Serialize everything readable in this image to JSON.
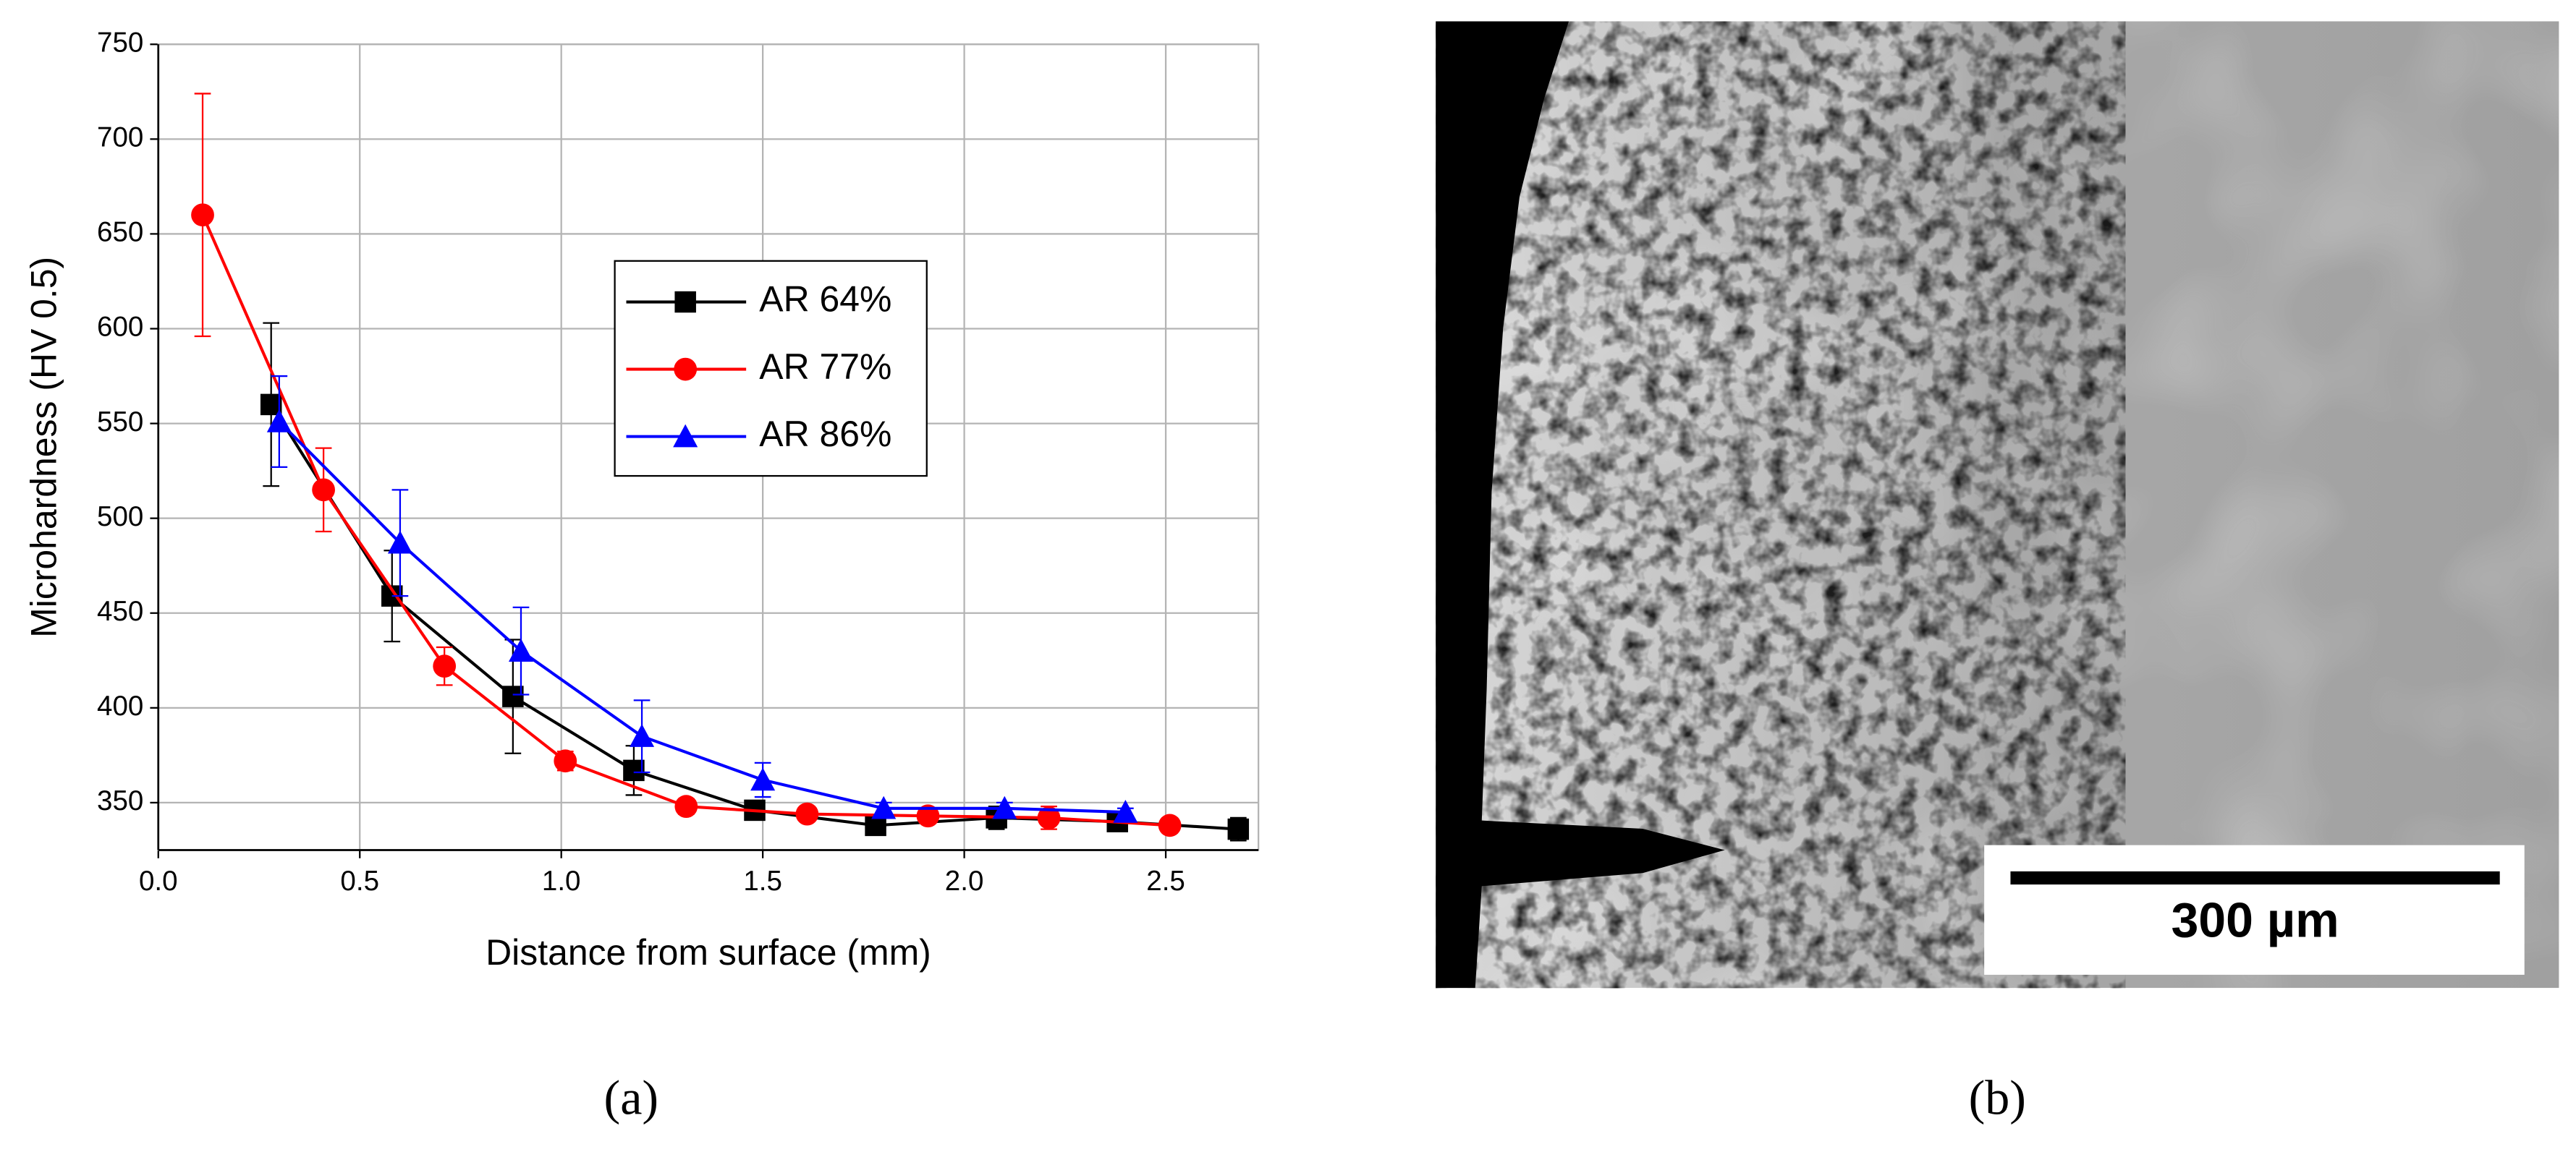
{
  "chart_data": {
    "type": "line",
    "x_label": "Distance from surface (mm)",
    "y_label": "Microhardness (HV 0.5)",
    "xlim": [
      0,
      2.73
    ],
    "ylim": [
      325,
      750
    ],
    "xticks": [
      {
        "value": 0,
        "label": "0.0"
      },
      0.5,
      {
        "value": 1,
        "label": "1.0"
      },
      1.5,
      {
        "value": 2,
        "label": "2.0"
      },
      2.5
    ],
    "yticks": [
      350,
      400,
      450,
      500,
      550,
      600,
      650,
      700,
      750
    ],
    "grid": true,
    "legend": "center",
    "series": [
      {
        "name": "AR 64%",
        "color": "#000000",
        "marker": "square",
        "x": [
          0.28,
          0.58,
          0.88,
          1.18,
          1.48,
          1.78,
          2.08,
          2.38,
          2.68
        ],
        "values": [
          560,
          459,
          406,
          367,
          346,
          338,
          342,
          340,
          336
        ],
        "errors": [
          43,
          24,
          30,
          13,
          5,
          5,
          6,
          4,
          6
        ]
      },
      {
        "name": "AR 77%",
        "color": "#ff0000",
        "marker": "circle",
        "x": [
          0.11,
          0.41,
          0.71,
          1.01,
          1.31,
          1.61,
          1.91,
          2.21,
          2.51
        ],
        "values": [
          660,
          515,
          422,
          372,
          348,
          344,
          343,
          342,
          338
        ],
        "errors": [
          64,
          22,
          10,
          5,
          4,
          3,
          3,
          6,
          3
        ]
      },
      {
        "name": "AR 86%",
        "color": "#0000ff",
        "marker": "triangle",
        "x": [
          0.3,
          0.6,
          0.9,
          1.2,
          1.5,
          1.8,
          2.1,
          2.4
        ],
        "values": [
          551,
          487,
          430,
          385,
          362,
          347,
          347,
          345
        ],
        "errors": [
          24,
          28,
          23,
          19,
          9,
          3,
          3,
          2
        ]
      }
    ]
  },
  "panel_b": {
    "scale_bar_label": "300 µm"
  },
  "panel_labels": [
    "(a)",
    "(b)"
  ]
}
